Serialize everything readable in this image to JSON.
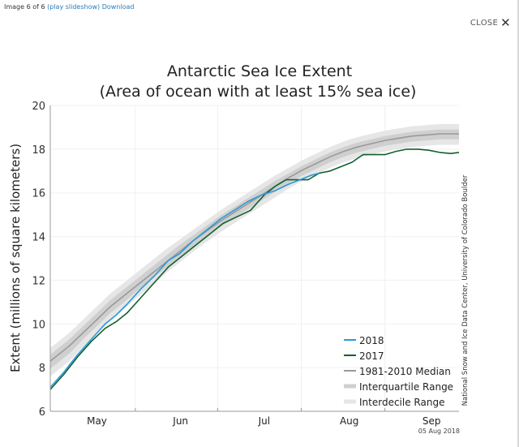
{
  "viewer": {
    "image_counter": "Image 6 of 6",
    "play_slideshow": "(play slideshow)",
    "download": "Download",
    "close_label": "CLOSE",
    "close_icon": "✕"
  },
  "chart_data": {
    "type": "line",
    "title": "Antarctic Sea Ice Extent",
    "subtitle": "(Area of ocean with at least 15% sea ice)",
    "xlabel": "",
    "ylabel": "Extent (millions of square kilometers)",
    "ylim": [
      6,
      20
    ],
    "yticks": [
      "6",
      "8",
      "10",
      "12",
      "14",
      "16",
      "18",
      "20"
    ],
    "x_unit": "day offset from May 1",
    "xlim": [
      -2,
      147
    ],
    "xtick_labels": [
      "May",
      "Jun",
      "Jul",
      "Aug",
      "Sep"
    ],
    "xtick_label_positions": [
      15,
      45.5,
      76,
      107,
      137
    ],
    "month_boundaries": [
      29,
      59,
      89.5,
      120
    ],
    "grid": true,
    "date_stamp": "05 Aug 2018",
    "credit": "National Snow and Ice Data Center, University of Colorado Boulder",
    "legend_position": "bottom-right",
    "legend": [
      {
        "label": "2018",
        "color": "#2b9ad8",
        "kind": "line"
      },
      {
        "label": "2017",
        "color": "#11602e",
        "kind": "line"
      },
      {
        "label": "1981-2010 Median",
        "color": "#999999",
        "kind": "line"
      },
      {
        "label": "Interquartile Range",
        "color": "#cfcfcf",
        "kind": "band"
      },
      {
        "label": "Interdecile Range",
        "color": "#e6e6e6",
        "kind": "band"
      }
    ],
    "x": [
      -2,
      5,
      10,
      15,
      20,
      25,
      30,
      35,
      40,
      45,
      50,
      55,
      60,
      65,
      70,
      75,
      80,
      85,
      90,
      95,
      100,
      105,
      110,
      115,
      120,
      125,
      130,
      135,
      140,
      147
    ],
    "median": [
      8.3,
      9.0,
      9.6,
      10.2,
      10.8,
      11.3,
      11.8,
      12.3,
      12.8,
      13.3,
      13.8,
      14.25,
      14.7,
      15.1,
      15.5,
      15.9,
      16.3,
      16.7,
      17.05,
      17.35,
      17.65,
      17.9,
      18.1,
      18.25,
      18.4,
      18.5,
      18.6,
      18.65,
      18.7,
      18.7
    ],
    "iqr_low": [
      7.95,
      8.65,
      9.3,
      9.9,
      10.5,
      11.0,
      11.55,
      12.05,
      12.55,
      13.05,
      13.55,
      14.0,
      14.45,
      14.85,
      15.25,
      15.65,
      16.05,
      16.45,
      16.8,
      17.1,
      17.4,
      17.65,
      17.85,
      18.0,
      18.15,
      18.25,
      18.35,
      18.4,
      18.45,
      18.45
    ],
    "iqr_high": [
      8.6,
      9.3,
      9.9,
      10.5,
      11.1,
      11.6,
      12.1,
      12.6,
      13.1,
      13.6,
      14.05,
      14.5,
      14.95,
      15.35,
      15.75,
      16.15,
      16.55,
      16.9,
      17.25,
      17.55,
      17.85,
      18.1,
      18.3,
      18.45,
      18.6,
      18.7,
      18.8,
      18.85,
      18.9,
      18.9
    ],
    "idr_low": [
      7.6,
      8.3,
      8.95,
      9.55,
      10.15,
      10.7,
      11.25,
      11.75,
      12.3,
      12.8,
      13.3,
      13.75,
      14.2,
      14.6,
      15.0,
      15.4,
      15.8,
      16.2,
      16.55,
      16.85,
      17.15,
      17.4,
      17.6,
      17.75,
      17.9,
      18.0,
      18.1,
      18.15,
      18.2,
      18.2
    ],
    "idr_high": [
      8.9,
      9.6,
      10.2,
      10.8,
      11.4,
      11.9,
      12.4,
      12.9,
      13.4,
      13.85,
      14.3,
      14.75,
      15.2,
      15.6,
      16.0,
      16.4,
      16.8,
      17.15,
      17.5,
      17.8,
      18.1,
      18.35,
      18.55,
      18.7,
      18.85,
      18.95,
      19.05,
      19.1,
      19.15,
      19.15
    ],
    "series": [
      {
        "name": "2018",
        "color": "#2b9ad8",
        "x": [
          -2,
          3,
          8,
          13,
          18,
          22,
          26,
          31,
          36,
          41,
          45,
          50,
          55,
          60,
          65,
          70,
          75,
          80,
          85,
          89,
          93,
          96
        ],
        "values": [
          7.1,
          7.8,
          8.6,
          9.3,
          10.0,
          10.4,
          10.9,
          11.6,
          12.2,
          12.9,
          13.2,
          13.8,
          14.3,
          14.8,
          15.2,
          15.6,
          15.9,
          16.1,
          16.4,
          16.6,
          16.8,
          16.9
        ]
      },
      {
        "name": "2017",
        "color": "#11602e",
        "x": [
          -2,
          3,
          8,
          13,
          18,
          22,
          26,
          31,
          36,
          41,
          46,
          51,
          56,
          61,
          66,
          71,
          76,
          80,
          84,
          88,
          92,
          96,
          100,
          104,
          108,
          112,
          116,
          120,
          124,
          128,
          132,
          136,
          140,
          144,
          147
        ],
        "values": [
          7.0,
          7.7,
          8.5,
          9.2,
          9.8,
          10.1,
          10.5,
          11.2,
          11.9,
          12.6,
          13.1,
          13.6,
          14.1,
          14.6,
          14.9,
          15.2,
          15.9,
          16.3,
          16.6,
          16.6,
          16.6,
          16.9,
          17.0,
          17.2,
          17.4,
          17.75,
          17.75,
          17.75,
          17.9,
          18.0,
          18.0,
          17.95,
          17.85,
          17.8,
          17.85
        ]
      }
    ]
  }
}
